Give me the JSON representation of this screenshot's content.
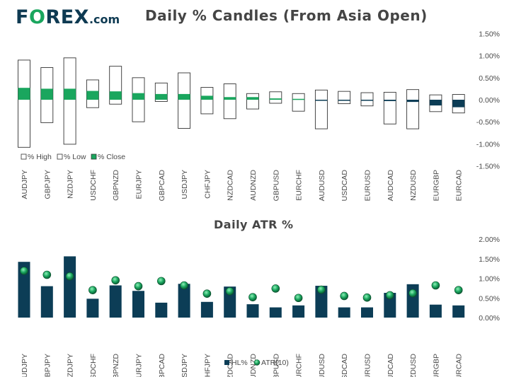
{
  "brand": {
    "part1": "F",
    "part2": "O",
    "part3": "REX",
    "suffix": ".com"
  },
  "colors": {
    "green": "#1aa65e",
    "navy": "#0c3d56",
    "outline": "#333333"
  },
  "chart_data": [
    {
      "type": "candlestick",
      "title": "Daily % Candles (From Asia Open)",
      "categories": [
        "AUDJPY",
        "GBPJPY",
        "NZDJPY",
        "USDCHF",
        "GBPNZD",
        "EURJPY",
        "GBPCAD",
        "USDJPY",
        "CHFJPY",
        "NZDCAD",
        "AUDNZD",
        "GBPUSD",
        "EURCHF",
        "AUDUSD",
        "USDCAD",
        "EURUSD",
        "AUDCAD",
        "NZDUSD",
        "EURGBP",
        "EURCAD"
      ],
      "high": [
        0.9,
        0.73,
        0.95,
        0.45,
        0.76,
        0.5,
        0.38,
        0.61,
        0.28,
        0.36,
        0.14,
        0.18,
        0.14,
        0.22,
        0.19,
        0.16,
        0.17,
        0.23,
        0.11,
        0.12
      ],
      "low": [
        -1.08,
        -0.52,
        -1.01,
        -0.18,
        -0.1,
        -0.5,
        -0.04,
        -0.65,
        -0.32,
        -0.43,
        -0.21,
        -0.08,
        -0.26,
        -0.66,
        -0.09,
        -0.14,
        -0.55,
        -0.66,
        -0.27,
        -0.3
      ],
      "close": [
        0.27,
        0.25,
        0.25,
        0.2,
        0.19,
        0.15,
        0.13,
        0.13,
        0.09,
        0.06,
        0.06,
        0.03,
        0.02,
        -0.02,
        -0.02,
        -0.02,
        -0.03,
        -0.05,
        -0.13,
        -0.17
      ],
      "yticks": [
        "1.50%",
        "1.00%",
        "0.50%",
        "0.00%",
        "-0.50%",
        "-1.00%",
        "-1.50%"
      ],
      "ylim": [
        -1.5,
        1.5
      ],
      "legend": [
        "% High",
        "% Low",
        "% Close"
      ]
    },
    {
      "type": "bar",
      "title": "Daily ATR %",
      "categories": [
        "AUDJPY",
        "GBPJPY",
        "NZDJPY",
        "USDCHF",
        "GBPNZD",
        "EURJPY",
        "GBPCAD",
        "USDJPY",
        "CHFJPY",
        "NZDCAD",
        "AUDNZD",
        "GBPUSD",
        "EURCHF",
        "AUDUSD",
        "USDCAD",
        "EURUSD",
        "AUDCAD",
        "NZDUSD",
        "EURGBP",
        "EURCAD"
      ],
      "series": [
        {
          "name": "HL%",
          "type": "bar",
          "values": [
            1.42,
            0.8,
            1.56,
            0.48,
            0.82,
            0.68,
            0.38,
            0.86,
            0.4,
            0.79,
            0.34,
            0.26,
            0.31,
            0.81,
            0.26,
            0.26,
            0.63,
            0.85,
            0.33,
            0.31
          ]
        },
        {
          "name": "ATR(10)",
          "type": "scatter",
          "values": [
            1.19,
            1.09,
            1.05,
            0.7,
            0.95,
            0.8,
            0.93,
            0.82,
            0.61,
            0.67,
            0.52,
            0.74,
            0.5,
            0.71,
            0.55,
            0.51,
            0.57,
            0.62,
            0.82,
            0.7
          ]
        }
      ],
      "yticks": [
        "2.00%",
        "1.50%",
        "1.00%",
        "0.50%",
        "0.00%"
      ],
      "ylim": [
        0,
        2.0
      ],
      "legend": [
        "HL%",
        "ATR(10)"
      ]
    }
  ]
}
